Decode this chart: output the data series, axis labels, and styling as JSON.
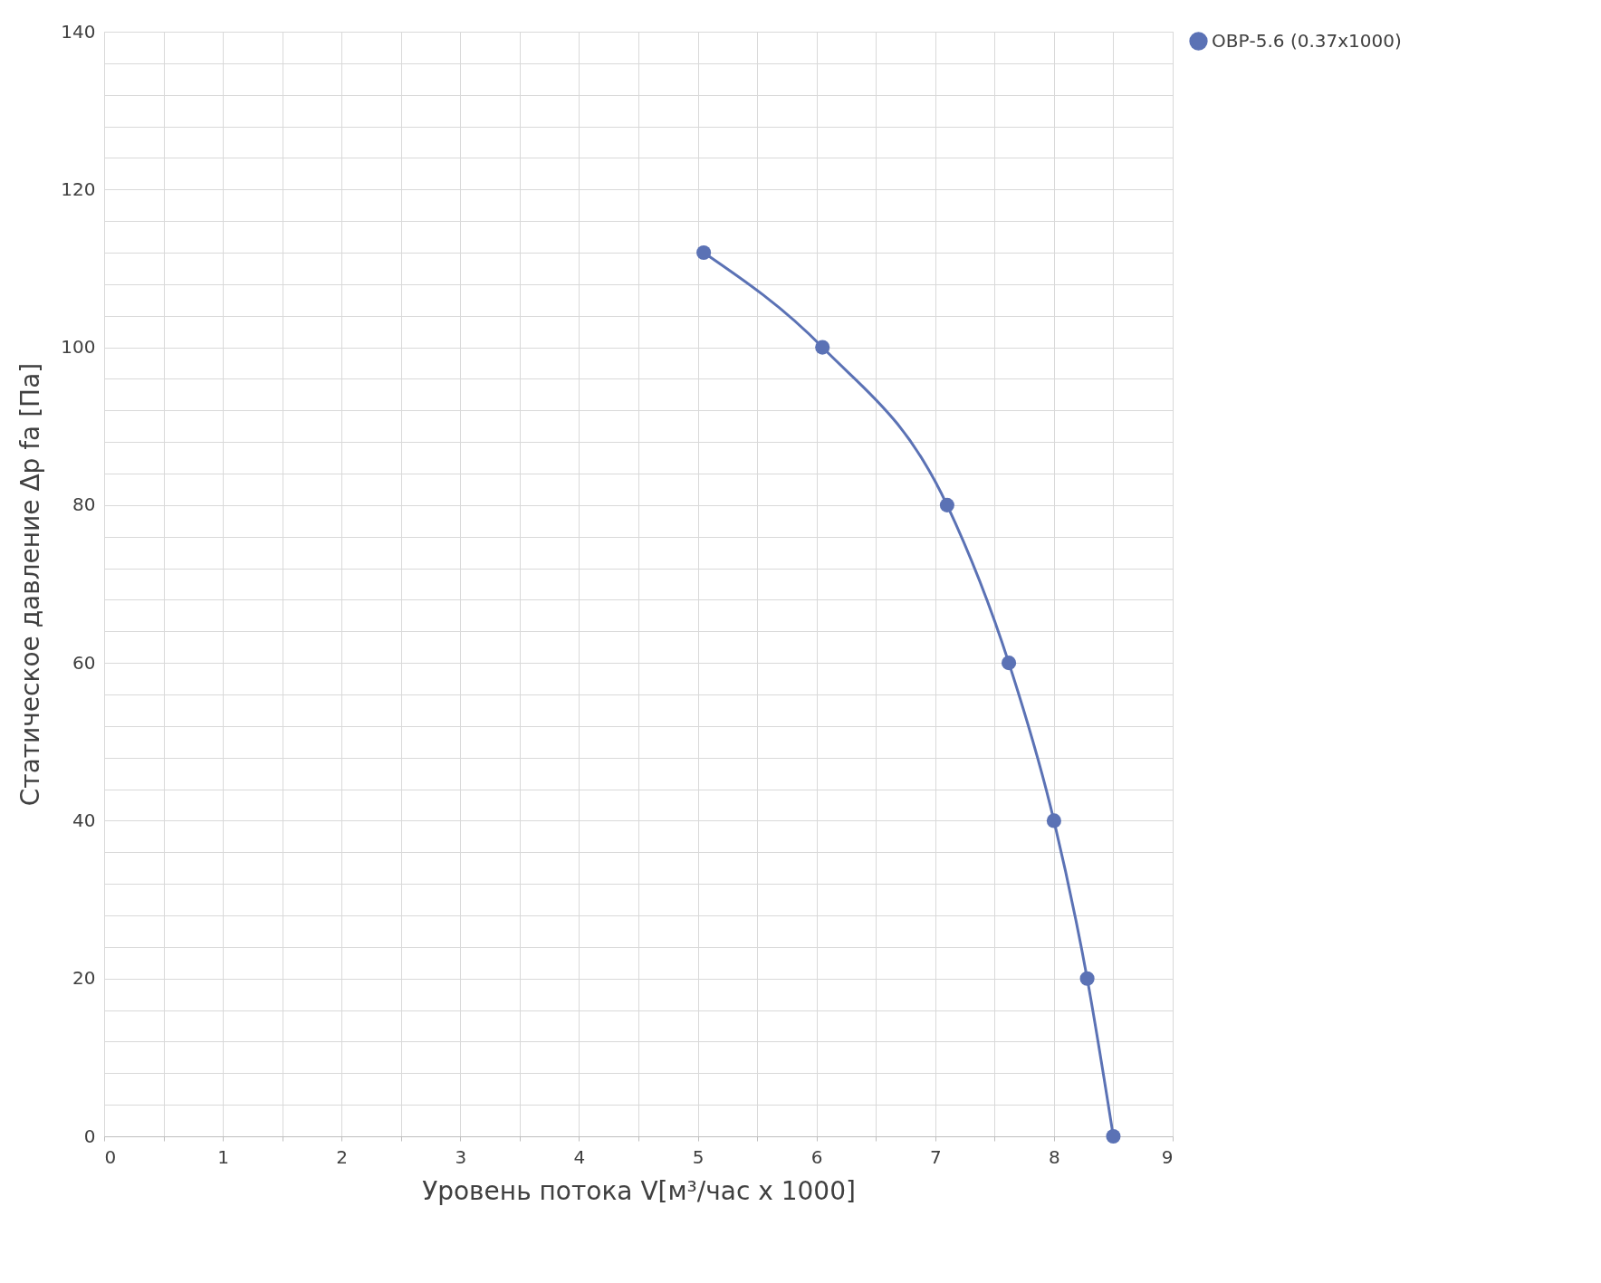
{
  "chart_data": {
    "type": "line",
    "xlabel": "Уровень потока V[м³/час x 1000]",
    "ylabel": "Статическое давление Δp fa [Па]",
    "series": [
      {
        "name": "ОВР-5.6 (0.37x1000)",
        "color": "#5b72b5",
        "x": [
          5.05,
          6.05,
          7.1,
          7.62,
          8.0,
          8.28,
          8.5
        ],
        "values": [
          112,
          100,
          80,
          60,
          40,
          20,
          0
        ]
      }
    ],
    "xlim": [
      0,
      9
    ],
    "ylim": [
      0,
      140
    ],
    "xticks": [
      0,
      {
        "value": 0.5,
        "label": null
      },
      1,
      {
        "value": 1.5,
        "label": null
      },
      2,
      {
        "value": 2.5,
        "label": null
      },
      3,
      {
        "value": 3.5,
        "label": null
      },
      4,
      {
        "value": 4.5,
        "label": null
      },
      5,
      {
        "value": 5.5,
        "label": null
      },
      6,
      {
        "value": 6.5,
        "label": null
      },
      7,
      {
        "value": 7.5,
        "label": null
      },
      8,
      {
        "value": 8.5,
        "label": null
      },
      9
    ],
    "yticks": [
      0,
      {
        "value": 4,
        "label": null
      },
      {
        "value": 8,
        "label": null
      },
      {
        "value": 12,
        "label": null
      },
      {
        "value": 16,
        "label": null
      },
      20,
      {
        "value": 24,
        "label": null
      },
      {
        "value": 28,
        "label": null
      },
      {
        "value": 32,
        "label": null
      },
      {
        "value": 36,
        "label": null
      },
      40,
      {
        "value": 44,
        "label": null
      },
      {
        "value": 48,
        "label": null
      },
      {
        "value": 52,
        "label": null
      },
      {
        "value": 56,
        "label": null
      },
      60,
      {
        "value": 64,
        "label": null
      },
      {
        "value": 68,
        "label": null
      },
      {
        "value": 72,
        "label": null
      },
      {
        "value": 76,
        "label": null
      },
      80,
      {
        "value": 84,
        "label": null
      },
      {
        "value": 88,
        "label": null
      },
      {
        "value": 92,
        "label": null
      },
      {
        "value": 96,
        "label": null
      },
      100,
      {
        "value": 104,
        "label": null
      },
      {
        "value": 108,
        "label": null
      },
      {
        "value": 112,
        "label": null
      },
      {
        "value": 116,
        "label": null
      },
      120,
      {
        "value": 124,
        "label": null
      },
      {
        "value": 128,
        "label": null
      },
      {
        "value": 132,
        "label": null
      },
      {
        "value": 136,
        "label": null
      },
      140
    ],
    "grid": true,
    "legend": "right",
    "marker": "circle",
    "line_style": "solid"
  }
}
